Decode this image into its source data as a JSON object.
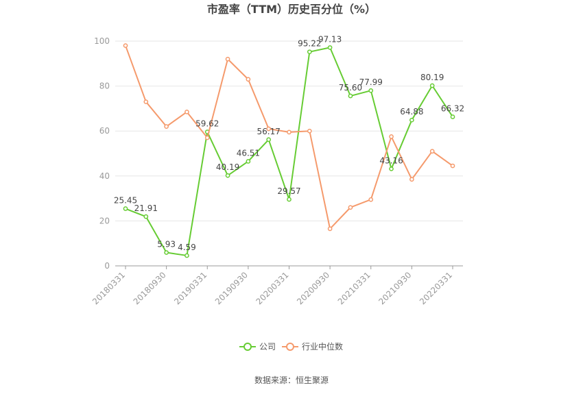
{
  "colors": {
    "company": "#66cc33",
    "industry": "#f59a6c",
    "grid": "#e6e6e6",
    "axis": "#999999"
  },
  "chart_data": {
    "type": "line",
    "title": "市盈率（TTM）历史百分位（%）",
    "ylim": [
      0,
      100
    ],
    "yticks": [
      0,
      20,
      40,
      60,
      80,
      100
    ],
    "x": [
      "20180331",
      "20180630",
      "20180930",
      "20181231",
      "20190331",
      "20190630",
      "20190930",
      "20191231",
      "20200331",
      "20200630",
      "20200930",
      "20201231",
      "20210331",
      "20210630",
      "20210930",
      "20211231",
      "20220331"
    ],
    "xtick_labels": [
      "20180331",
      "20180930",
      "20190331",
      "20190930",
      "20200331",
      "20200930",
      "20210331",
      "20210930",
      "20220331"
    ],
    "series": [
      {
        "name": "公司",
        "values": [
          25.45,
          21.91,
          5.93,
          4.59,
          59.62,
          40.19,
          46.51,
          56.17,
          29.57,
          95.22,
          97.13,
          75.6,
          77.99,
          43.16,
          64.88,
          80.19,
          66.32
        ],
        "labels": [
          "25.45",
          "21.91",
          "5.93",
          "4.59",
          "59.62",
          "40.19",
          "46.51",
          "56.17",
          "29.57",
          "95.22",
          "97.13",
          "75.60",
          "77.99",
          "43.16",
          "64.88",
          "80.19",
          "66.32"
        ]
      },
      {
        "name": "行业中位数",
        "values": [
          98.0,
          73.0,
          62.0,
          68.5,
          57.0,
          92.0,
          83.0,
          61.0,
          59.5,
          60.0,
          16.5,
          26.0,
          29.5,
          57.5,
          38.5,
          51.0,
          44.5
        ]
      }
    ],
    "legend_position": "bottom-center",
    "grid": true
  },
  "source_text": "数据来源：恒生聚源"
}
